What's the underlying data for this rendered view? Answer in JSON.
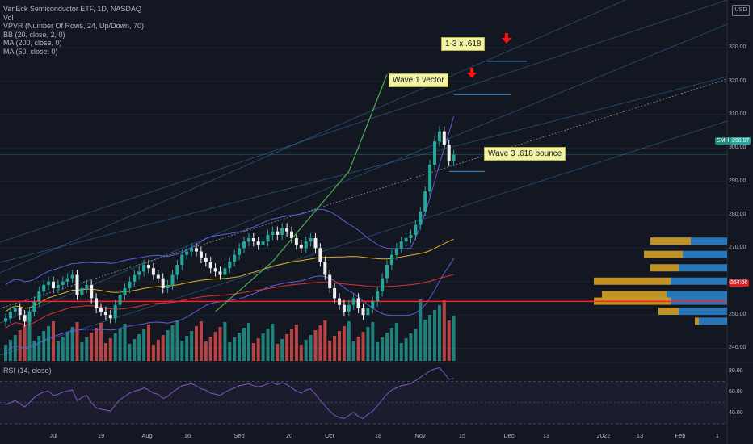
{
  "legend": {
    "title": "VanEck Semiconductor ETF, 1D, NASDAQ",
    "vol": "Vol",
    "vpvr": "VPVR (Number Of Rows, 24, Up/Down, 70)",
    "bb": "BB (20, close, 2, 0)",
    "ma200": "MA (200, close, 0)",
    "ma50": "MA (50, close, 0)"
  },
  "rsi_legend": "RSI (14, close)",
  "currency": "USD",
  "price_labels": {
    "smh_tag": "SMH",
    "current_price": "298.07",
    "hline_price": "254.06"
  },
  "annotations": {
    "a1": "1-3 x .618",
    "a2": "Wave 1 vector",
    "a3": "Wave 3 .618 bounce"
  },
  "colors": {
    "background": "#131722",
    "up": "#26a69a",
    "down": "#ef5350",
    "bb": "#5b5fd6",
    "ma50": "#e0b020",
    "ma200": "#e03030",
    "hline": "#ff2020",
    "annotation": "#f2f3a3",
    "arrow": "#ff1010",
    "wave": "#4caf50",
    "channel": "#3a8ed0",
    "vpvr_up": "#2b7fc9",
    "vpvr_down": "#d3a028"
  },
  "chart_data": [
    {
      "type": "candlestick",
      "title": "VanEck Semiconductor ETF, 1D, NASDAQ",
      "x_ticks": [
        "Jul",
        "19",
        "Aug",
        "16",
        "Sep",
        "20",
        "Oct",
        "18",
        "Nov",
        "15",
        "Dec",
        "13",
        "2022",
        "13",
        "Feb",
        "1"
      ],
      "y_ticks": [
        240,
        250,
        260,
        270,
        280,
        290,
        300,
        310,
        320,
        330
      ],
      "ylim": [
        236,
        340
      ],
      "close_series": [
        249,
        251,
        252,
        250,
        248,
        251,
        254,
        257,
        259,
        260,
        258,
        259,
        260,
        261,
        262,
        256,
        258,
        259,
        255,
        252,
        251,
        250,
        249,
        253,
        256,
        258,
        260,
        262,
        263,
        265,
        264,
        262,
        261,
        258,
        259,
        262,
        265,
        268,
        269,
        270,
        269,
        267,
        266,
        264,
        263,
        262,
        264,
        266,
        268,
        270,
        272,
        273,
        272,
        271,
        272,
        274,
        275,
        274,
        276,
        275,
        273,
        271,
        270,
        272,
        273,
        270,
        266,
        262,
        258,
        255,
        253,
        251,
        253,
        255,
        252,
        250,
        252,
        254,
        257,
        261,
        265,
        268,
        270,
        272,
        273,
        274,
        277,
        281,
        287,
        295,
        302,
        305,
        301,
        296,
        298
      ],
      "current_price": 298.07,
      "horizontal_line": 254.06,
      "wave_points": [
        [
          44,
          251
        ],
        [
          56,
          266
        ],
        [
          72,
          293
        ],
        [
          80,
          322
        ]
      ],
      "vpvr": [
        {
          "price": 272,
          "up": 45,
          "down": 50
        },
        {
          "price": 268,
          "up": 55,
          "down": 48
        },
        {
          "price": 264,
          "up": 60,
          "down": 35
        },
        {
          "price": 260,
          "up": 70,
          "down": 95
        },
        {
          "price": 256,
          "up": 75,
          "down": 80
        },
        {
          "price": 254,
          "up": 70,
          "down": 95
        },
        {
          "price": 251,
          "up": 60,
          "down": 25
        },
        {
          "price": 248,
          "up": 35,
          "down": 5
        }
      ]
    },
    {
      "type": "line",
      "title": "RSI (14, close)",
      "y_ticks": [
        40,
        60,
        80
      ],
      "ylim": [
        30,
        85
      ],
      "values": [
        48,
        50,
        52,
        49,
        46,
        50,
        55,
        58,
        60,
        61,
        57,
        58,
        60,
        61,
        62,
        52,
        55,
        57,
        50,
        45,
        44,
        43,
        42,
        48,
        53,
        56,
        59,
        61,
        62,
        64,
        62,
        59,
        58,
        54,
        56,
        60,
        63,
        66,
        67,
        68,
        66,
        63,
        62,
        59,
        58,
        57,
        60,
        62,
        64,
        66,
        67,
        68,
        66,
        65,
        66,
        68,
        69,
        67,
        69,
        67,
        64,
        61,
        59,
        62,
        63,
        58,
        52,
        47,
        42,
        38,
        36,
        35,
        38,
        41,
        37,
        35,
        39,
        42,
        47,
        53,
        58,
        62,
        64,
        66,
        67,
        68,
        71,
        74,
        77,
        80,
        82,
        83,
        78,
        72,
        73
      ]
    }
  ]
}
